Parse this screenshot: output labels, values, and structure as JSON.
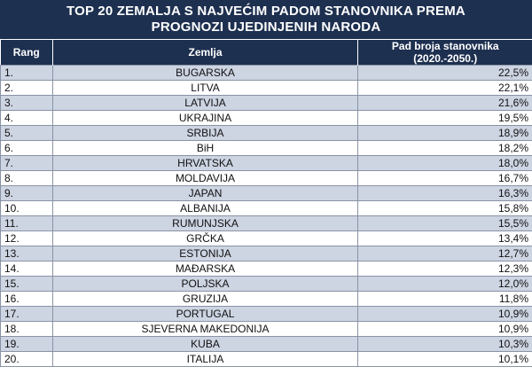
{
  "header": {
    "title_line1": "TOP 20 ZEMALJA S NAJVEĆIM PADOM STANOVNIKA PREMA",
    "title_line2": "PROGNOZI UJEDINJENIH NARODA"
  },
  "table": {
    "columns": [
      "Rang",
      "Zemlja",
      "Pad broja stanovnika (2020.-2050.)"
    ],
    "rows": [
      [
        "1.",
        "BUGARSKA",
        "22,5%"
      ],
      [
        "2.",
        "LITVA",
        "22,1%"
      ],
      [
        "3.",
        "LATVIJA",
        "21,6%"
      ],
      [
        "4.",
        "UKRAJINA",
        "19,5%"
      ],
      [
        "5.",
        "SRBIJA",
        "18,9%"
      ],
      [
        "6.",
        "BiH",
        "18,2%"
      ],
      [
        "7.",
        "HRVATSKA",
        "18,0%"
      ],
      [
        "8.",
        "MOLDAVIJA",
        "16,7%"
      ],
      [
        "9.",
        "JAPAN",
        "16,3%"
      ],
      [
        "10.",
        "ALBANIJA",
        "15,8%"
      ],
      [
        "11.",
        "RUMUNJSKA",
        "15,5%"
      ],
      [
        "12.",
        "GRČKA",
        "13,4%"
      ],
      [
        "13.",
        "ESTONIJA",
        "12,7%"
      ],
      [
        "14.",
        "MAĐARSKA",
        "12,3%"
      ],
      [
        "15.",
        "POLJSKA",
        "12,0%"
      ],
      [
        "16.",
        "GRUZIJA",
        "11,8%"
      ],
      [
        "17.",
        "PORTUGAL",
        "10,9%"
      ],
      [
        "18.",
        "SJEVERNA MAKEDONIJA",
        "10,9%"
      ],
      [
        "19.",
        "KUBA",
        "10,3%"
      ],
      [
        "20.",
        "ITALIJA",
        "10,1%"
      ]
    ]
  },
  "colors": {
    "header_bg": "#1e3050",
    "stripe": "#cdd4e2"
  }
}
